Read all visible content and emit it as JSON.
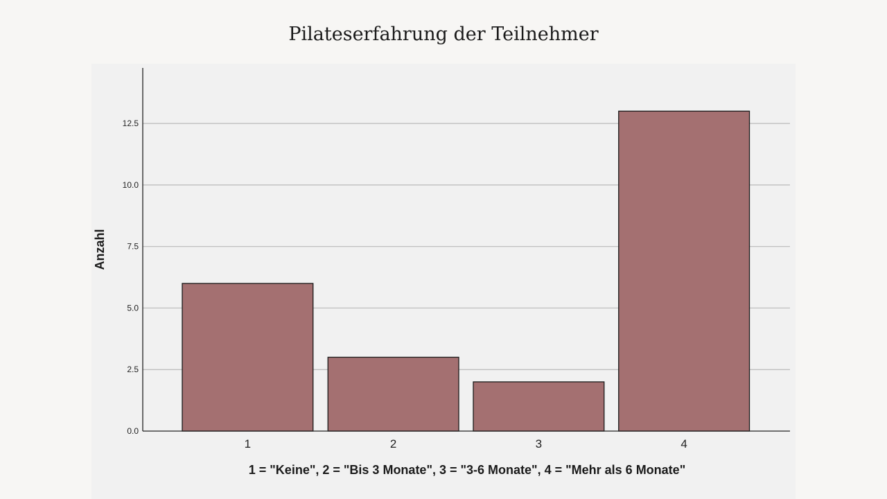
{
  "title": "Pilateserfahrung der Teilnehmer",
  "chart_data": {
    "type": "bar",
    "title": "Pilateserfahrung der Teilnehmer",
    "categories": [
      "1",
      "2",
      "3",
      "4"
    ],
    "values": [
      6,
      3,
      2,
      13
    ],
    "xlabel": "1 = \"Keine\", 2 = \"Bis 3 Monate\", 3 = \"3-6 Monate\", 4 = \"Mehr als 6 Monate\"",
    "ylabel": "Anzahl",
    "ylim": [
      0,
      14.7
    ],
    "yticks": [
      "0.0",
      "2.5",
      "5.0",
      "7.5",
      "10.0",
      "12.5"
    ],
    "ytick_values": [
      0,
      2.5,
      5,
      7.5,
      10,
      12.5
    ],
    "grid": true,
    "legend": "none",
    "colors": {
      "bar": "#a47071",
      "panel": "#f1f1f1",
      "background": "#f7f6f4"
    }
  }
}
